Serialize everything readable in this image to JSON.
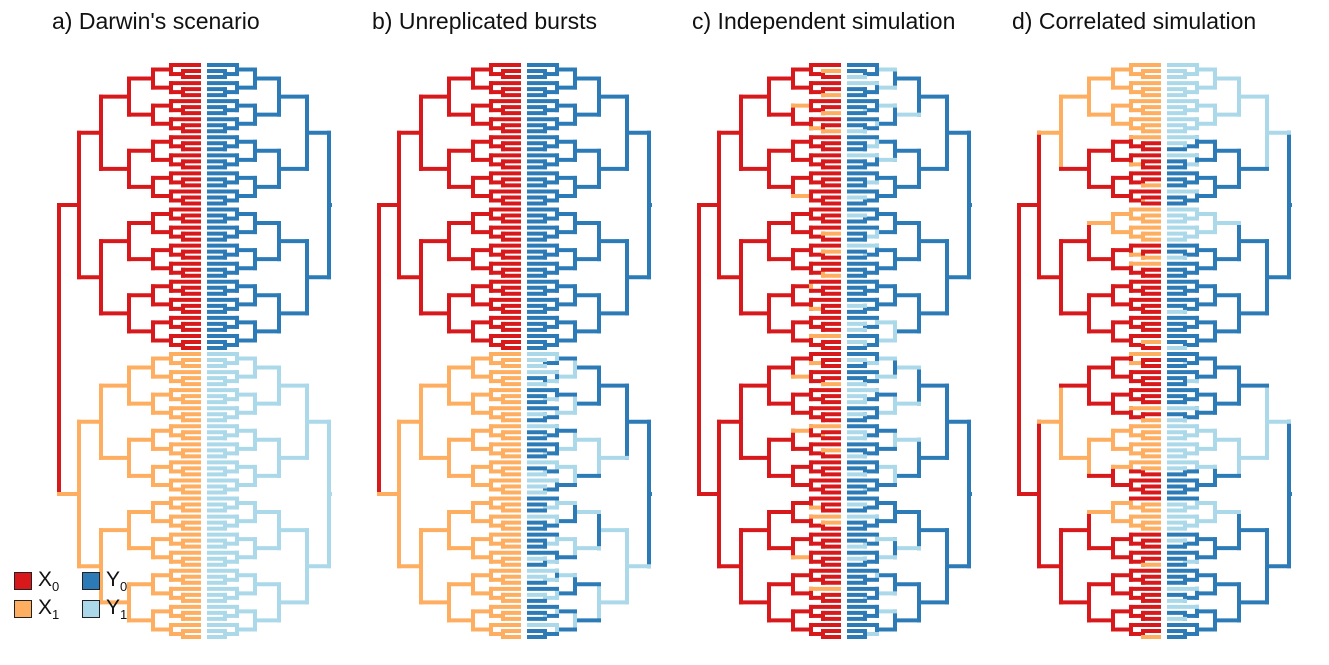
{
  "colors": {
    "X0": "#d7191c",
    "X1": "#fdae61",
    "Y0": "#2c7bb6",
    "Y1": "#abd9e9"
  },
  "panels": [
    {
      "title": "a) Darwin's scenario",
      "scheme": "darwin"
    },
    {
      "title": "b) Unreplicated bursts",
      "scheme": "burst"
    },
    {
      "title": "c) Independent simulation",
      "scheme": "independent"
    },
    {
      "title": "d) Correlated simulation",
      "scheme": "correlated"
    }
  ],
  "legend": [
    {
      "key": "X0",
      "base": "X",
      "sub": "0"
    },
    {
      "key": "Y0",
      "base": "Y",
      "sub": "0"
    },
    {
      "key": "X1",
      "base": "X",
      "sub": "1"
    },
    {
      "key": "Y1",
      "base": "Y",
      "sub": "1"
    }
  ]
}
